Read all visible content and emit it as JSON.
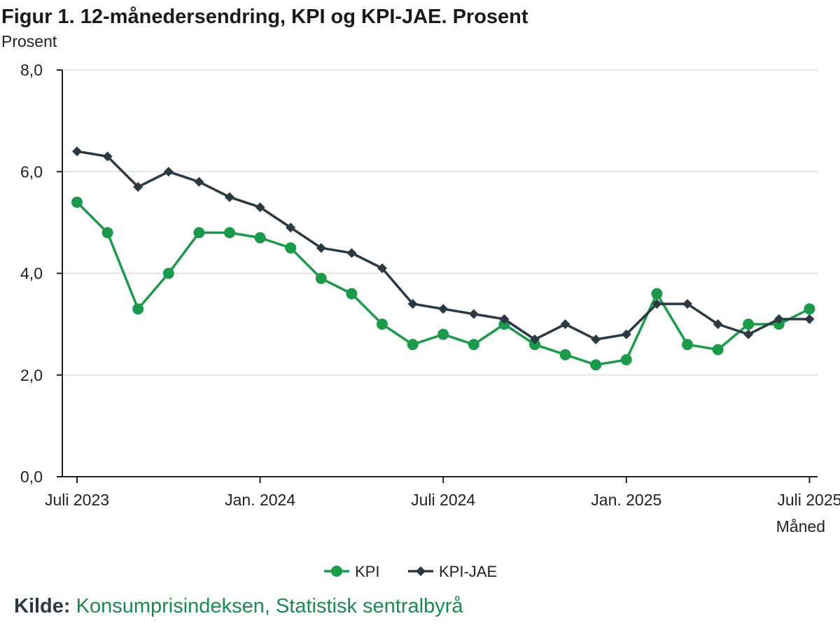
{
  "header": {
    "title": "Figur 1. 12-månedersendring, KPI og KPI-JAE. Prosent"
  },
  "source": {
    "label": "Kilde:",
    "text": "Konsumprisindeksen, Statistisk sentralbyrå"
  },
  "colors": {
    "kpi": "#1a9a4a",
    "kpi_jae": "#2b3a42",
    "grid": "#dddddd",
    "axis": "#222222",
    "source_link": "#1a8a4e"
  },
  "chart_data": {
    "type": "line",
    "title": "Figur 1. 12-månedersendring, KPI og KPI-JAE. Prosent",
    "ylabel": "Prosent",
    "xlabel": "Måned",
    "ylim": [
      0,
      8
    ],
    "yticks": [
      "0,0",
      "2,0",
      "4,0",
      "6,0",
      "8,0"
    ],
    "ytick_values": [
      0,
      2,
      4,
      6,
      8
    ],
    "grid": true,
    "legend_position": "bottom-center",
    "x": [
      "2023-07",
      "2023-08",
      "2023-09",
      "2023-10",
      "2023-11",
      "2023-12",
      "2024-01",
      "2024-02",
      "2024-03",
      "2024-04",
      "2024-05",
      "2024-06",
      "2024-07",
      "2024-08",
      "2024-09",
      "2024-10",
      "2024-11",
      "2024-12",
      "2025-01",
      "2025-02",
      "2025-03",
      "2025-04",
      "2025-05",
      "2025-06",
      "2025-07"
    ],
    "xtick_labels": [
      "Juli 2023",
      "Jan. 2024",
      "Juli 2024",
      "Jan. 2025",
      "Juli 2025"
    ],
    "xtick_positions": [
      "2023-07",
      "2024-01",
      "2024-07",
      "2025-01",
      "2025-07"
    ],
    "series": [
      {
        "name": "KPI",
        "color": "#1a9a4a",
        "marker": "circle",
        "values": [
          5.4,
          4.8,
          3.3,
          4.0,
          4.8,
          4.8,
          4.7,
          4.5,
          3.9,
          3.6,
          3.0,
          2.6,
          2.8,
          2.6,
          3.0,
          2.6,
          2.4,
          2.2,
          2.3,
          3.6,
          2.6,
          2.5,
          3.0,
          3.0,
          3.3
        ]
      },
      {
        "name": "KPI-JAE",
        "color": "#2b3a42",
        "marker": "diamond",
        "values": [
          6.4,
          6.3,
          5.7,
          6.0,
          5.8,
          5.5,
          5.3,
          4.9,
          4.5,
          4.4,
          4.1,
          3.4,
          3.3,
          3.2,
          3.1,
          2.7,
          3.0,
          2.7,
          2.8,
          3.4,
          3.4,
          3.0,
          2.8,
          3.1,
          3.1
        ]
      }
    ]
  }
}
